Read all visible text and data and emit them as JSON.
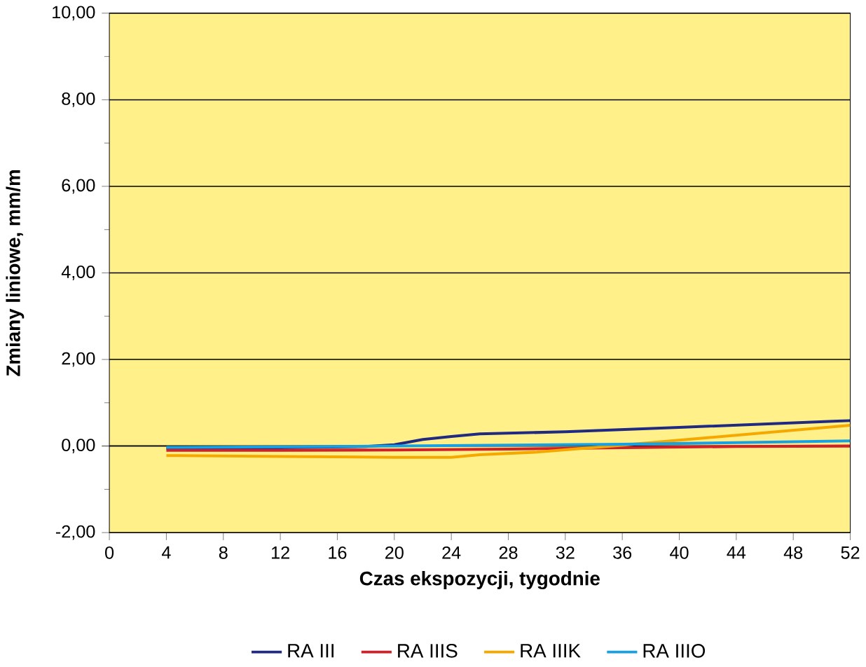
{
  "chart_data": {
    "type": "line",
    "xlabel": "Czas ekspozycji, tygodnie",
    "ylabel": "Zmiany liniowe, mm/m",
    "xlim": [
      0,
      52
    ],
    "xticks": [
      0,
      4,
      8,
      12,
      16,
      20,
      24,
      28,
      32,
      36,
      40,
      44,
      48,
      52
    ],
    "ylim": [
      -2,
      10
    ],
    "yticks": [
      {
        "value": -2,
        "label": "-2,00"
      },
      {
        "value": 0,
        "label": "0,00"
      },
      {
        "value": 2,
        "label": "2,00"
      },
      {
        "value": 4,
        "label": "4,00"
      },
      {
        "value": 6,
        "label": "6,00"
      },
      {
        "value": 8,
        "label": "8,00"
      },
      {
        "value": 10,
        "label": "10,00"
      }
    ],
    "grid": "y",
    "legend": "bottom",
    "marker": "none",
    "line_style": "solid",
    "series": [
      {
        "name": "RA III",
        "color": "#1f2a80",
        "x": [
          4,
          12,
          18,
          20,
          22,
          24,
          26,
          32,
          40,
          52
        ],
        "values": [
          -0.05,
          -0.04,
          -0.01,
          0.03,
          0.15,
          0.22,
          0.28,
          0.33,
          0.43,
          0.59
        ]
      },
      {
        "name": "RA IIIS",
        "color": "#d0202a",
        "x": [
          4,
          12,
          20,
          28,
          36,
          44,
          52
        ],
        "values": [
          -0.1,
          -0.1,
          -0.09,
          -0.07,
          -0.04,
          -0.01,
          0.0
        ]
      },
      {
        "name": "RA IIIK",
        "color": "#f5a800",
        "x": [
          4,
          12,
          20,
          24,
          26,
          30,
          36,
          44,
          52
        ],
        "values": [
          -0.22,
          -0.24,
          -0.26,
          -0.26,
          -0.2,
          -0.14,
          0.02,
          0.25,
          0.48
        ]
      },
      {
        "name": "RA IIIO",
        "color": "#1aa0e0",
        "x": [
          4,
          12,
          20,
          28,
          36,
          44,
          52
        ],
        "values": [
          -0.03,
          -0.02,
          0.0,
          0.02,
          0.04,
          0.08,
          0.12
        ]
      }
    ]
  }
}
